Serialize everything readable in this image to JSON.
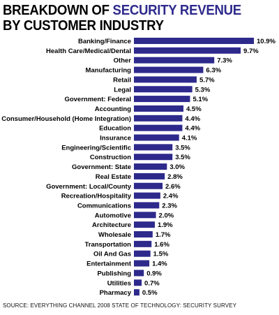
{
  "title": {
    "line1_prefix": "BREAKDOWN OF ",
    "line1_accent": "SECURITY REVENUE",
    "line2": "BY CUSTOMER INDUSTRY"
  },
  "source": "SOURCE: EVERYTHING CHANNEL 2008 STATE OF TECHNOLOGY: SECURITY SURVEY",
  "colors": {
    "bar": "#2e2a8c",
    "title_accent": "#2e2a8c",
    "text": "#000000"
  },
  "chart_data": {
    "type": "bar",
    "orientation": "horizontal",
    "title": "BREAKDOWN OF SECURITY REVENUE BY CUSTOMER INDUSTRY",
    "xlabel": "",
    "ylabel": "",
    "unit": "%",
    "xlim": [
      0,
      10.9
    ],
    "grid": false,
    "categories": [
      "Banking/Finance",
      "Health Care/Medical/Dental",
      "Other",
      "Manufacturing",
      "Retail",
      "Legal",
      "Government: Federal",
      "Accounting",
      "Consumer/Household (Home Integration)",
      "Education",
      "Insurance",
      "Engineering/Scientific",
      "Construction",
      "Government: State",
      "Real Estate",
      "Government: Local/County",
      "Recreation/Hospitality",
      "Communications",
      "Automotive",
      "Architecture",
      "Wholesale",
      "Transportation",
      "Oil And Gas",
      "Entertainment",
      "Publishing",
      "Utilities",
      "Pharmacy"
    ],
    "values": [
      10.9,
      9.7,
      7.3,
      6.3,
      5.7,
      5.3,
      5.1,
      4.5,
      4.4,
      4.4,
      4.1,
      3.5,
      3.5,
      3.0,
      2.8,
      2.6,
      2.4,
      2.3,
      2.0,
      1.9,
      1.7,
      1.6,
      1.5,
      1.4,
      0.9,
      0.7,
      0.5
    ],
    "value_labels": [
      "10.9%",
      "9.7%",
      "7.3%",
      "6.3%",
      "5.7%",
      "5.3%",
      "5.1%",
      "4.5%",
      "4.4%",
      "4.4%",
      "4.1%",
      "3.5%",
      "3.5%",
      "3.0%",
      "2.8%",
      "2.6%",
      "2.4%",
      "2.3%",
      "2.0%",
      "1.9%",
      "1.7%",
      "1.6%",
      "1.5%",
      "1.4%",
      "0.9%",
      "0.7%",
      "0.5%"
    ]
  }
}
